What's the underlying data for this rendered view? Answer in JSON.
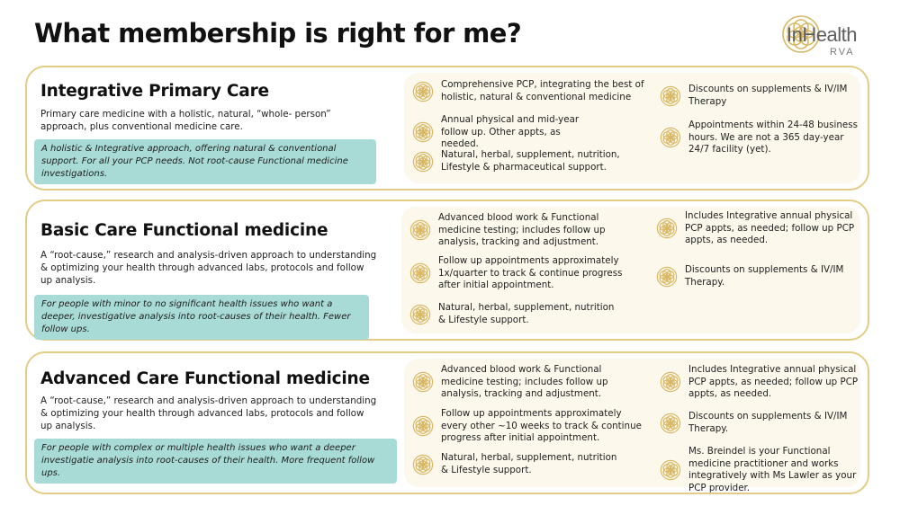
{
  "page": {
    "title": "What membership is right for me?"
  },
  "logo": {
    "main": "InHealth",
    "sub": "RVA"
  },
  "colors": {
    "border": "#e3cd86",
    "panel": "#fdf8ec",
    "note": "#a8dbd6",
    "icon": "#d8b865"
  },
  "icon_name": "flower-of-life-icon",
  "plans": [
    {
      "title": "Integrative Primary Care",
      "description": "Primary care medicine with a holistic, natural, “whole- person” approach, plus conventional medicine care.",
      "note": "A holistic & Integrative approach, offering natural & conventional support. For all your PCP needs. Not root-cause Functional medicine investigations.",
      "features_left": [
        "Comprehensive PCP, integrating the best of holistic, natural & conventional medicine",
        "Annual physical and mid-year follow up. Other appts, as needed.",
        "Natural, herbal, supplement, nutrition, Lifestyle & pharmaceutical support."
      ],
      "features_right": [
        "Discounts on supplements & IV/IM Therapy",
        "Appointments within 24-48 business hours. We are not a 365 day-year 24/7 facility (yet)."
      ]
    },
    {
      "title": "Basic Care Functional medicine",
      "description": "A “root-cause,” research and analysis-driven approach to understanding & optimizing your health through advanced labs, protocols and follow up analysis.",
      "note": "For people with minor to no significant health issues who want a deeper, investigative analysis into root-causes of their health. Fewer follow ups.",
      "features_left": [
        "Advanced blood work & Functional medicine testing; includes follow up analysis, tracking and adjustment.",
        "Follow up appointments approximately 1x/quarter to track & continue progress after initial appointment.",
        "Natural, herbal, supplement, nutrition & Lifestyle support."
      ],
      "features_right": [
        "Includes Integrative annual physical PCP appts, as needed; follow up PCP appts, as needed.",
        "Discounts on supplements & IV/IM Therapy."
      ]
    },
    {
      "title": "Advanced Care Functional medicine",
      "description": "A “root-cause,” research and analysis-driven approach to understanding & optimizing your health through advanced labs, protocols and follow up analysis.",
      "note": "For people with complex or multiple health issues who want a deeper investigatie analysis into root-causes of their health. More frequent follow ups.",
      "features_left": [
        "Advanced blood work & Functional medicine testing; includes follow up analysis, tracking and adjustment.",
        "Follow up appointments approximately every other ~10 weeks to track & continue progress after initial appointment.",
        "Natural, herbal, supplement, nutrition & Lifestyle support."
      ],
      "features_right": [
        "Includes Integrative annual physical  PCP appts, as needed; follow up PCP appts, as needed.",
        "Discounts on supplements & IV/IM Therapy.",
        "Ms. Breindel is your Functional medicine practitioner and works integratively with Ms Lawler as your PCP provider."
      ]
    }
  ]
}
